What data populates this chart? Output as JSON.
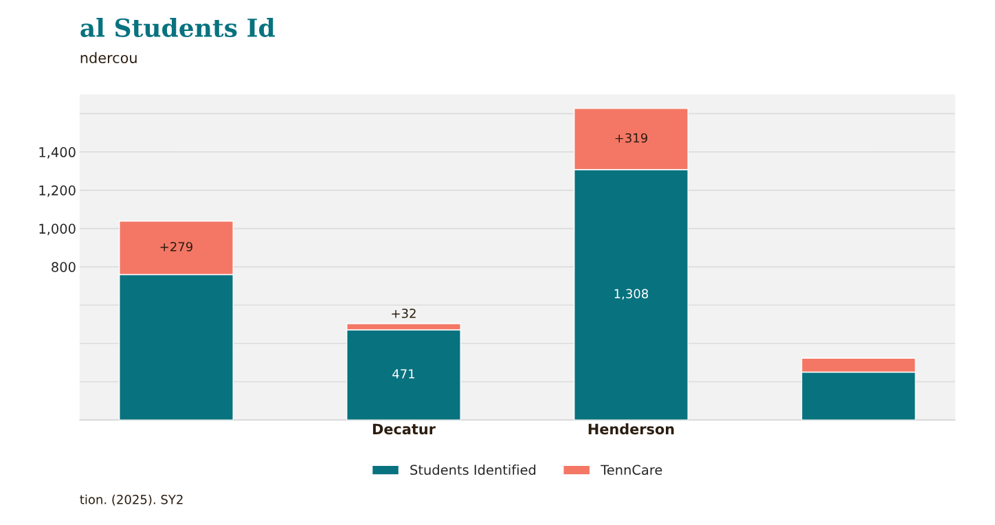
{
  "chart_data": {
    "type": "bar",
    "stacked": true,
    "title": "al Students Id",
    "subtitle": "ndercou",
    "categories": [
      null,
      "Decatur",
      "Henderson",
      null
    ],
    "series": [
      {
        "name": "Students Identified",
        "color": "#08727f",
        "values": [
          760,
          471,
          1308,
          250
        ],
        "value_labels": [
          null,
          "471",
          "1,308",
          null
        ]
      },
      {
        "name": "TennCare",
        "color": "#f47766",
        "values": [
          279,
          32,
          319,
          73
        ],
        "value_labels": [
          "+279",
          "+32",
          "+319",
          null
        ]
      }
    ],
    "ylim": [
      0,
      1700
    ],
    "yticks": [
      {
        "value": 0,
        "label": null
      },
      {
        "value": 200,
        "label": null
      },
      {
        "value": 400,
        "label": null
      },
      {
        "value": 600,
        "label": null
      },
      {
        "value": 800,
        "label": "800"
      },
      {
        "value": 1000,
        "label": "1,000"
      },
      {
        "value": 1200,
        "label": "1,200"
      },
      {
        "value": 1400,
        "label": "1,400"
      },
      {
        "value": 1600,
        "label": null
      }
    ],
    "grid": "y",
    "legend": "bottom",
    "annotations": [
      "tion. (2025). SY2"
    ]
  }
}
